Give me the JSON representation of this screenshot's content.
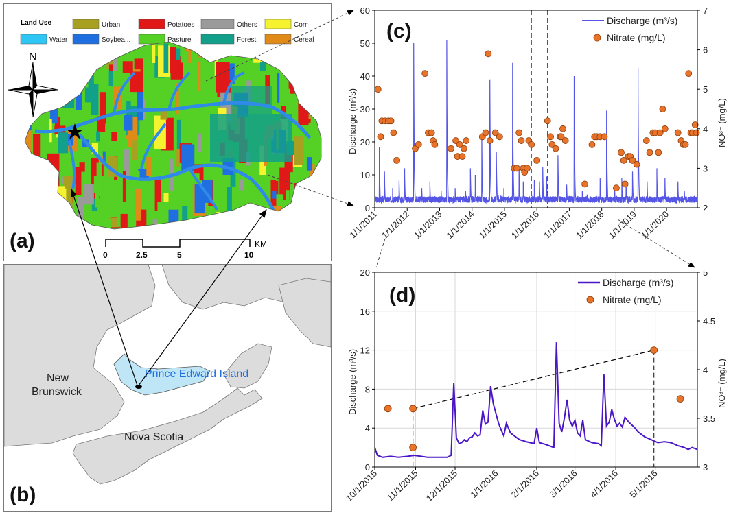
{
  "map_a": {
    "panel_label": "(a)",
    "legend": {
      "title": "Land Use",
      "items": [
        {
          "name": "Water",
          "color": "#2ec6f4"
        },
        {
          "name": "Urban",
          "color": "#a8a020"
        },
        {
          "name": "Soybea...",
          "color": "#1f6fe0"
        },
        {
          "name": "Potatoes",
          "color": "#e01818"
        },
        {
          "name": "Pasture",
          "color": "#55d025"
        },
        {
          "name": "Others",
          "color": "#9a9a9a"
        },
        {
          "name": "Forest",
          "color": "#12a08a"
        },
        {
          "name": "Corn",
          "color": "#f5f230"
        },
        {
          "name": "Cereal",
          "color": "#e08a18"
        }
      ]
    },
    "north": "N",
    "scale": {
      "ticks": [
        "0",
        "2.5",
        "5",
        "10"
      ],
      "unit": "KM"
    }
  },
  "map_b": {
    "panel_label": "(b)",
    "labels": {
      "nb_line1": "New",
      "nb_line2": "Brunswick",
      "pei": "Prince Edward Island",
      "ns": "Nova Scotia"
    },
    "colors": {
      "land": "#dcdcdc",
      "pei": "#bfe6f6",
      "pei_text": "#1f6fe0"
    }
  },
  "chart_data": [
    {
      "id": "c",
      "type": "line+scatter",
      "panel_label": "(c)",
      "ylabel": "Discharge (m³/s)",
      "y2label": "NO³⁻ (mg/L)",
      "ylim": [
        0,
        60
      ],
      "y2lim": [
        2,
        7
      ],
      "yticks": [
        0,
        10,
        20,
        30,
        40,
        50,
        60
      ],
      "y2ticks": [
        2,
        3,
        4,
        5,
        6,
        7
      ],
      "xlim": [
        2011.0,
        2020.95
      ],
      "xticks": [
        "1/1/2011",
        "1/1/2012",
        "1/1/2013",
        "1/1/2014",
        "1/1/2015",
        "1/1/2016",
        "1/1/2017",
        "1/1/2018",
        "1/1/2019",
        "1/1/2020"
      ],
      "legend": {
        "discharge": "Discharge (m³/s)",
        "nitrate": "Nitrate (mg/L)"
      },
      "line_color": "#5555e6",
      "point_color": "#e8732a",
      "discharge_peaks": [
        [
          2011.14,
          18.5
        ],
        [
          2011.3,
          11
        ],
        [
          2011.55,
          6
        ],
        [
          2011.75,
          8.5
        ],
        [
          2011.92,
          12
        ],
        [
          2012.2,
          50
        ],
        [
          2012.45,
          6
        ],
        [
          2012.7,
          8
        ],
        [
          2013.05,
          5
        ],
        [
          2013.22,
          51
        ],
        [
          2013.48,
          6
        ],
        [
          2013.8,
          5
        ],
        [
          2013.95,
          12
        ],
        [
          2014.1,
          10
        ],
        [
          2014.3,
          22
        ],
        [
          2014.55,
          39
        ],
        [
          2014.75,
          17
        ],
        [
          2014.98,
          6
        ],
        [
          2015.25,
          44
        ],
        [
          2015.45,
          12
        ],
        [
          2015.58,
          8
        ],
        [
          2015.92,
          8.5
        ],
        [
          2016.08,
          8
        ],
        [
          2016.18,
          12.5
        ],
        [
          2016.3,
          9.5
        ],
        [
          2016.65,
          16
        ],
        [
          2016.92,
          7
        ],
        [
          2017.15,
          40
        ],
        [
          2017.4,
          5
        ],
        [
          2017.55,
          4
        ],
        [
          2017.95,
          9
        ],
        [
          2018.15,
          29.5
        ],
        [
          2018.4,
          6
        ],
        [
          2018.62,
          9
        ],
        [
          2018.75,
          8
        ],
        [
          2018.95,
          11
        ],
        [
          2019.12,
          42.5
        ],
        [
          2019.4,
          8
        ],
        [
          2019.7,
          12
        ],
        [
          2019.95,
          9
        ],
        [
          2020.35,
          8
        ],
        [
          2020.55,
          5
        ],
        [
          2020.9,
          3
        ]
      ],
      "nitrate": [
        [
          2011.1,
          5.0
        ],
        [
          2011.18,
          3.8
        ],
        [
          2011.22,
          4.2
        ],
        [
          2011.32,
          4.2
        ],
        [
          2011.42,
          4.2
        ],
        [
          2011.5,
          4.2
        ],
        [
          2011.58,
          3.9
        ],
        [
          2011.68,
          3.2
        ],
        [
          2012.25,
          3.5
        ],
        [
          2012.35,
          3.6
        ],
        [
          2012.55,
          5.4
        ],
        [
          2012.65,
          3.9
        ],
        [
          2012.75,
          3.9
        ],
        [
          2012.8,
          3.7
        ],
        [
          2012.85,
          3.6
        ],
        [
          2013.35,
          3.5
        ],
        [
          2013.5,
          3.7
        ],
        [
          2013.55,
          3.3
        ],
        [
          2013.62,
          3.6
        ],
        [
          2013.7,
          3.3
        ],
        [
          2013.75,
          3.5
        ],
        [
          2013.82,
          3.7
        ],
        [
          2014.32,
          3.8
        ],
        [
          2014.42,
          3.9
        ],
        [
          2014.5,
          5.9
        ],
        [
          2014.55,
          3.7
        ],
        [
          2014.72,
          3.9
        ],
        [
          2014.85,
          3.8
        ],
        [
          2015.3,
          3.0
        ],
        [
          2015.38,
          3.0
        ],
        [
          2015.45,
          3.9
        ],
        [
          2015.52,
          3.7
        ],
        [
          2015.58,
          3.0
        ],
        [
          2015.62,
          2.9
        ],
        [
          2015.7,
          3.0
        ],
        [
          2015.75,
          3.7
        ],
        [
          2015.83,
          3.6
        ],
        [
          2016.0,
          3.2
        ],
        [
          2016.33,
          4.2
        ],
        [
          2016.42,
          3.8
        ],
        [
          2016.47,
          3.6
        ],
        [
          2016.58,
          3.5
        ],
        [
          2016.72,
          3.8
        ],
        [
          2016.75,
          3.8
        ],
        [
          2016.8,
          4.0
        ],
        [
          2016.88,
          3.7
        ],
        [
          2017.48,
          2.6
        ],
        [
          2017.7,
          3.6
        ],
        [
          2017.78,
          3.8
        ],
        [
          2017.85,
          3.8
        ],
        [
          2017.95,
          3.8
        ],
        [
          2018.08,
          3.8
        ],
        [
          2018.45,
          2.5
        ],
        [
          2018.6,
          3.4
        ],
        [
          2018.68,
          3.2
        ],
        [
          2018.72,
          2.6
        ],
        [
          2018.82,
          3.3
        ],
        [
          2018.88,
          3.3
        ],
        [
          2018.95,
          3.2
        ],
        [
          2019.08,
          3.1
        ],
        [
          2019.38,
          3.7
        ],
        [
          2019.48,
          3.4
        ],
        [
          2019.58,
          3.9
        ],
        [
          2019.65,
          3.9
        ],
        [
          2019.75,
          3.4
        ],
        [
          2019.8,
          3.9
        ],
        [
          2019.88,
          4.5
        ],
        [
          2019.95,
          4.0
        ],
        [
          2020.35,
          3.9
        ],
        [
          2020.45,
          3.7
        ],
        [
          2020.52,
          3.6
        ],
        [
          2020.58,
          3.6
        ],
        [
          2020.68,
          5.4
        ],
        [
          2020.75,
          3.9
        ],
        [
          2020.8,
          3.9
        ],
        [
          2020.88,
          4.1
        ],
        [
          2020.92,
          3.9
        ]
      ],
      "dashed_markers": [
        2015.83,
        2016.33
      ]
    },
    {
      "id": "d",
      "type": "line+scatter",
      "panel_label": "(d)",
      "ylabel": "Discharge (m³/s)",
      "y2label": "NO³⁻ (mg/L)",
      "ylim": [
        0,
        20
      ],
      "y2lim": [
        3,
        5
      ],
      "yticks": [
        0,
        4,
        8,
        12,
        16,
        20
      ],
      "y2ticks": [
        "3",
        "3.5",
        "4",
        "4.5",
        "5"
      ],
      "y2tickvals": [
        3,
        3.5,
        4,
        4.5,
        5
      ],
      "xlim": [
        0,
        245
      ],
      "xticks": [
        "10/1/2015",
        "11/1/2015",
        "12/1/2015",
        "1/1/2016",
        "2/1/2016",
        "3/1/2016",
        "4/1/2016",
        "5/1/2016"
      ],
      "xtickvals": [
        0,
        31,
        61,
        92,
        123,
        152,
        183,
        213
      ],
      "legend": {
        "discharge": "Discharge (m³/s)",
        "nitrate": "Nitrate (mg/L)"
      },
      "line_color": "#4a16c8",
      "point_color": "#e8732a",
      "discharge": [
        [
          0,
          2.0
        ],
        [
          2,
          1.2
        ],
        [
          6,
          1.0
        ],
        [
          12,
          1.1
        ],
        [
          18,
          1.0
        ],
        [
          25,
          1.1
        ],
        [
          30,
          1.2
        ],
        [
          40,
          1.0
        ],
        [
          50,
          1.0
        ],
        [
          55,
          1.0
        ],
        [
          58,
          1.2
        ],
        [
          60,
          8.6
        ],
        [
          62,
          3.0
        ],
        [
          64,
          2.4
        ],
        [
          66,
          2.5
        ],
        [
          68,
          2.8
        ],
        [
          70,
          2.6
        ],
        [
          72,
          3.0
        ],
        [
          74,
          3.1
        ],
        [
          76,
          3.5
        ],
        [
          78,
          3.2
        ],
        [
          80,
          3.3
        ],
        [
          82,
          5.8
        ],
        [
          84,
          4.4
        ],
        [
          86,
          4.6
        ],
        [
          88,
          8.3
        ],
        [
          90,
          6.5
        ],
        [
          92,
          5.5
        ],
        [
          94,
          4.5
        ],
        [
          96,
          3.8
        ],
        [
          98,
          3.2
        ],
        [
          100,
          4.5
        ],
        [
          103,
          3.5
        ],
        [
          106,
          3.2
        ],
        [
          110,
          2.8
        ],
        [
          115,
          2.6
        ],
        [
          118,
          2.5
        ],
        [
          121,
          2.4
        ],
        [
          123,
          4.0
        ],
        [
          125,
          2.5
        ],
        [
          130,
          2.3
        ],
        [
          136,
          2.0
        ],
        [
          138,
          12.8
        ],
        [
          140,
          4.5
        ],
        [
          142,
          3.6
        ],
        [
          144,
          5.0
        ],
        [
          146,
          6.9
        ],
        [
          148,
          4.8
        ],
        [
          150,
          4.2
        ],
        [
          152,
          4.8
        ],
        [
          154,
          3.5
        ],
        [
          156,
          3.2
        ],
        [
          158,
          4.8
        ],
        [
          160,
          2.8
        ],
        [
          165,
          2.5
        ],
        [
          170,
          2.4
        ],
        [
          172,
          2.2
        ],
        [
          174,
          9.5
        ],
        [
          176,
          4.2
        ],
        [
          178,
          4.6
        ],
        [
          180,
          5.9
        ],
        [
          182,
          4.9
        ],
        [
          184,
          4.2
        ],
        [
          186,
          4.5
        ],
        [
          188,
          4.1
        ],
        [
          190,
          5.1
        ],
        [
          193,
          4.6
        ],
        [
          197,
          4.1
        ],
        [
          200,
          3.6
        ],
        [
          205,
          3.1
        ],
        [
          210,
          2.8
        ],
        [
          215,
          2.5
        ],
        [
          220,
          2.6
        ],
        [
          225,
          2.5
        ],
        [
          230,
          2.2
        ],
        [
          235,
          2.0
        ],
        [
          238,
          1.8
        ],
        [
          241,
          2.0
        ],
        [
          245,
          1.8
        ]
      ],
      "nitrate": [
        [
          10,
          3.6
        ],
        [
          29,
          3.2
        ],
        [
          29,
          3.6
        ],
        [
          212,
          4.2
        ],
        [
          232,
          3.7
        ]
      ],
      "trend_line": [
        [
          29,
          3.6
        ],
        [
          212,
          4.2
        ]
      ],
      "dashed_markers": [
        29,
        212
      ]
    }
  ]
}
